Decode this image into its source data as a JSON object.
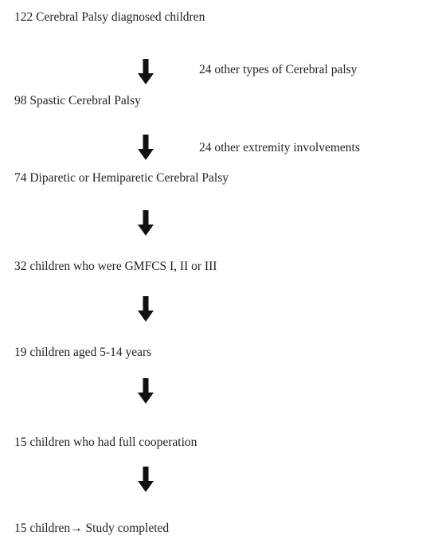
{
  "nodes": [
    {
      "label": "122 Cerebral Palsy diagnosed children"
    },
    {
      "label": "98 Spastic Cerebral Palsy"
    },
    {
      "label": "74 Diparetic or Hemiparetic Cerebral Palsy"
    },
    {
      "label": "32 children who were GMFCS I, II or III"
    },
    {
      "label": "19 children aged 5-14 years"
    },
    {
      "label": "15 children who had full cooperation"
    },
    {
      "label": "15 children→ Study completed"
    }
  ],
  "exclusions": [
    {
      "label": "24 other types of Cerebral palsy"
    },
    {
      "label": "24 other extremity involvements"
    }
  ]
}
